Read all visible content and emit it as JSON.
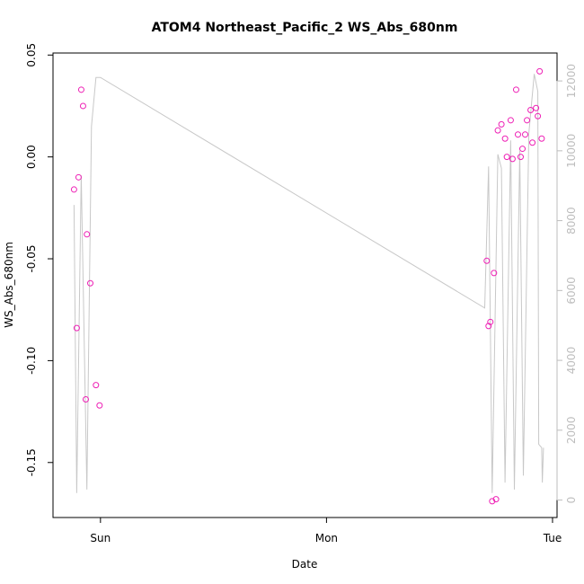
{
  "chart_data": {
    "type": "scatter",
    "title": "ATOM4 Northeast_Pacific_2 WS_Abs_680nm",
    "xlabel": "Date",
    "ylabel": "WS_Abs_680nm",
    "ylim": [
      -0.177,
      0.051
    ],
    "y_ticks": [
      {
        "value": 0.05,
        "label": "0.05"
      },
      {
        "value": 0.0,
        "label": "0.00"
      },
      {
        "value": -0.05,
        "label": "-0.05"
      },
      {
        "value": -0.1,
        "label": "-0.10"
      },
      {
        "value": -0.15,
        "label": "-0.15"
      }
    ],
    "xlim": [
      -0.21,
      2.02
    ],
    "x_ticks": [
      {
        "value": 0,
        "label": "Sun"
      },
      {
        "value": 1,
        "label": "Mon"
      },
      {
        "value": 2,
        "label": "Tue"
      }
    ],
    "y2lim": [
      -500,
      12800
    ],
    "y2_ticks": [
      {
        "value": 0,
        "label": "0"
      },
      {
        "value": 2000,
        "label": "2000"
      },
      {
        "value": 4000,
        "label": "4000"
      },
      {
        "value": 6000,
        "label": "6000"
      },
      {
        "value": 8000,
        "label": "8000"
      },
      {
        "value": 10000,
        "label": "10000"
      },
      {
        "value": 12000,
        "label": "12000"
      }
    ],
    "grid": false,
    "colors": {
      "points": "#ee1fb5",
      "line": "#c8c8c8",
      "right_axis": "#bdbdbd"
    },
    "series": [
      {
        "type": "scatter",
        "points": [
          {
            "x": -0.117,
            "y": -0.016
          },
          {
            "x": -0.105,
            "y": -0.084
          },
          {
            "x": -0.097,
            "y": -0.01
          },
          {
            "x": -0.085,
            "y": 0.033
          },
          {
            "x": -0.077,
            "y": 0.025
          },
          {
            "x": -0.065,
            "y": -0.119
          },
          {
            "x": -0.06,
            "y": -0.038
          },
          {
            "x": -0.045,
            "y": -0.062
          },
          {
            "x": -0.02,
            "y": -0.112
          },
          {
            "x": -0.004,
            "y": -0.122
          },
          {
            "x": 1.709,
            "y": -0.051
          },
          {
            "x": 1.717,
            "y": -0.083
          },
          {
            "x": 1.725,
            "y": -0.081
          },
          {
            "x": 1.733,
            "y": -0.169
          },
          {
            "x": 1.741,
            "y": -0.057
          },
          {
            "x": 1.75,
            "y": -0.168
          },
          {
            "x": 1.758,
            "y": 0.013
          },
          {
            "x": 1.774,
            "y": 0.016
          },
          {
            "x": 1.79,
            "y": 0.009
          },
          {
            "x": 1.798,
            "y": 0.0
          },
          {
            "x": 1.815,
            "y": 0.018
          },
          {
            "x": 1.823,
            "y": -0.001
          },
          {
            "x": 1.839,
            "y": 0.033
          },
          {
            "x": 1.847,
            "y": 0.011
          },
          {
            "x": 1.859,
            "y": 0.0
          },
          {
            "x": 1.867,
            "y": 0.004
          },
          {
            "x": 1.879,
            "y": 0.011
          },
          {
            "x": 1.887,
            "y": 0.018
          },
          {
            "x": 1.903,
            "y": 0.023
          },
          {
            "x": 1.911,
            "y": 0.007
          },
          {
            "x": 1.927,
            "y": 0.024
          },
          {
            "x": 1.935,
            "y": 0.02
          },
          {
            "x": 1.943,
            "y": 0.042
          },
          {
            "x": 1.952,
            "y": 0.009
          }
        ]
      },
      {
        "type": "line",
        "axis": "right",
        "points": [
          {
            "x": -0.117,
            "y": 8450
          },
          {
            "x": -0.105,
            "y": 200
          },
          {
            "x": -0.085,
            "y": 9300
          },
          {
            "x": -0.06,
            "y": 300
          },
          {
            "x": -0.04,
            "y": 10700
          },
          {
            "x": -0.02,
            "y": 12100
          },
          {
            "x": 0.0,
            "y": 12100
          },
          {
            "x": 1.7,
            "y": 5500
          },
          {
            "x": 1.717,
            "y": 9550
          },
          {
            "x": 1.733,
            "y": 200
          },
          {
            "x": 1.758,
            "y": 9900
          },
          {
            "x": 1.774,
            "y": 9500
          },
          {
            "x": 1.79,
            "y": 500
          },
          {
            "x": 1.815,
            "y": 10300
          },
          {
            "x": 1.831,
            "y": 300
          },
          {
            "x": 1.855,
            "y": 10000
          },
          {
            "x": 1.871,
            "y": 700
          },
          {
            "x": 1.895,
            "y": 10500
          },
          {
            "x": 1.919,
            "y": 12200
          },
          {
            "x": 1.935,
            "y": 11700
          },
          {
            "x": 1.939,
            "y": 1600
          },
          {
            "x": 1.952,
            "y": 1500
          },
          {
            "x": 1.955,
            "y": 500
          },
          {
            "x": 1.96,
            "y": 1500
          }
        ]
      }
    ]
  }
}
